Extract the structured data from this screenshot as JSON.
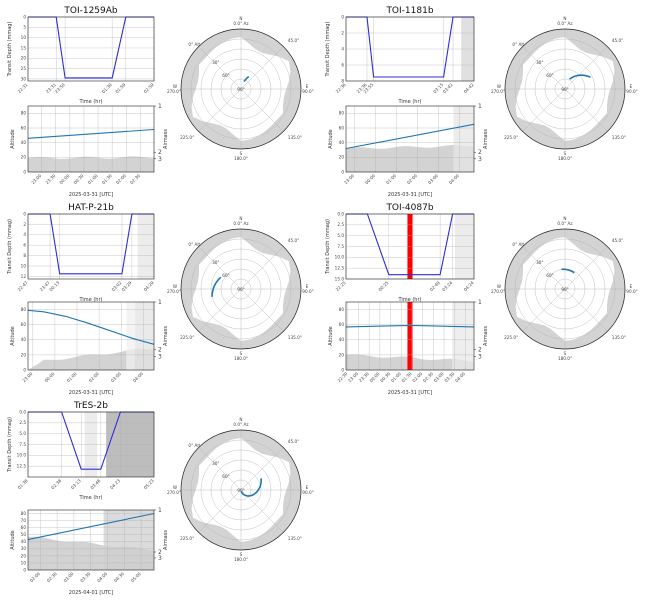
{
  "colors": {
    "transit": "#2a2fd6",
    "altitude": "#1f77b4",
    "sky": "#1f77b4",
    "horizon": "#d3d3d3",
    "shade_light": "#e9e9e9",
    "shade_dark": "#bdbdbd",
    "marker": "#ff0000",
    "grid": "#b0b0b0"
  },
  "polar_labels": {
    "n": "N",
    "n_az": "0.0° Az",
    "e": "E",
    "e_az": "90.0°",
    "s": "S",
    "s_az": "180.0°",
    "w": "W",
    "w_az": "270.0°",
    "d45": "45.0°",
    "d135": "135.0°",
    "d225": "225.0°",
    "d315": "315.0°",
    "r0": "0° Alt",
    "r30": "30°",
    "r60": "60°",
    "r90": "90°"
  },
  "chart_data": [
    {
      "type": "line",
      "title": "TOI-1259Ab",
      "transit": {
        "ylabel": "Transit Depth (mmag)",
        "xlabel": "Time (hr)",
        "y_ticks": [
          "0",
          "5",
          "10",
          "15",
          "20",
          "25",
          "30"
        ],
        "y_range": [
          0,
          31
        ],
        "x_ticks": [
          "22:31",
          "23:31",
          "23:50",
          "01:30",
          "01:59",
          "02:59"
        ],
        "x": [
          "22:31",
          "23:31",
          "23:50",
          "01:30",
          "01:59",
          "02:59"
        ],
        "depth": [
          0,
          0,
          29.5,
          29.5,
          0,
          0
        ]
      },
      "altitude": {
        "ylabel": "Altitude",
        "y2label": "Airmass",
        "xlabel": "2025-03-31 [UTC]",
        "y_ticks": [
          "0",
          "20",
          "40",
          "60",
          "80"
        ],
        "y_range": [
          0,
          90
        ],
        "airmass_ticks": [
          "1",
          "2",
          "3"
        ],
        "x_ticks": [
          "23:00",
          "23:30",
          "00:00",
          "00:30",
          "01:00",
          "01:30",
          "02:00",
          "02:30"
        ],
        "x": [
          "22:31",
          "02:59"
        ],
        "alt": [
          46,
          58
        ]
      }
    },
    {
      "type": "line",
      "title": "TOI-1181b",
      "transit": {
        "ylabel": "Transit Depth (mmag)",
        "xlabel": "Time (hr)",
        "y_ticks": [
          "0",
          "2",
          "4",
          "6",
          "8"
        ],
        "y_range": [
          0,
          8
        ],
        "x_ticks": [
          "22:36",
          "23:36",
          "23:55",
          "03:15",
          "03:42",
          "04:42"
        ],
        "x": [
          "22:36",
          "23:36",
          "23:55",
          "03:15",
          "03:42",
          "04:42"
        ],
        "depth": [
          0,
          0,
          7.5,
          7.5,
          0,
          0
        ]
      },
      "altitude": {
        "ylabel": "Altitude",
        "y2label": "Airmass",
        "xlabel": "2025-03-31 [UTC]",
        "y_ticks": [
          "0",
          "20",
          "40",
          "60",
          "80"
        ],
        "y_range": [
          0,
          90
        ],
        "airmass_ticks": [
          "1",
          "2",
          "3"
        ],
        "x_ticks": [
          "23:00",
          "00:00",
          "01:00",
          "02:00",
          "03:00",
          "04:00"
        ],
        "x": [
          "22:36",
          "04:42"
        ],
        "alt": [
          32,
          65
        ]
      }
    },
    {
      "type": "line",
      "title": "HAT-P-21b",
      "transit": {
        "ylabel": "Transit Depth (mmag)",
        "xlabel": "Time (hr)",
        "y_ticks": [
          "0",
          "2",
          "4",
          "6",
          "8",
          "10",
          "12"
        ],
        "y_range": [
          0,
          12.5
        ],
        "x_ticks": [
          "22:47",
          "23:47",
          "00:13",
          "03:02",
          "03:29",
          "04:29"
        ],
        "x": [
          "22:47",
          "23:47",
          "00:13",
          "03:02",
          "03:29",
          "04:29"
        ],
        "depth": [
          0,
          0,
          11.5,
          11.5,
          0,
          0
        ]
      },
      "altitude": {
        "ylabel": "Altitude",
        "y2label": "Airmass",
        "xlabel": "2025-03-31 [UTC]",
        "y_ticks": [
          "0",
          "20",
          "40",
          "60",
          "80"
        ],
        "y_range": [
          0,
          90
        ],
        "airmass_ticks": [
          "1",
          "2",
          "3"
        ],
        "x_ticks": [
          "23:00",
          "00:00",
          "01:00",
          "02:00",
          "03:00",
          "04:00"
        ],
        "x": [
          "22:47",
          "23:30",
          "00:30",
          "01:30",
          "02:30",
          "03:30",
          "04:29"
        ],
        "alt": [
          79,
          77,
          71,
          62,
          52,
          42,
          34
        ]
      }
    },
    {
      "type": "line",
      "title": "TOI-4087b",
      "transit": {
        "ylabel": "Transit Depth (mmag)",
        "xlabel": "Time (hr)",
        "y_ticks": [
          "0.0",
          "2.5",
          "5.0",
          "7.5",
          "10.0",
          "12.5",
          "15.0"
        ],
        "y_range": [
          0,
          15
        ],
        "x_ticks": [
          "22:25",
          "00:25",
          "02:49",
          "03:24",
          "04:24"
        ],
        "x": [
          "22:25",
          "23:25",
          "00:25",
          "02:49",
          "03:24",
          "04:24"
        ],
        "depth": [
          0,
          0,
          14,
          14,
          0,
          0
        ]
      },
      "altitude": {
        "ylabel": "Altitude",
        "y2label": "Airmass",
        "xlabel": "2025-03-31 [UTC]",
        "y_ticks": [
          "0",
          "20",
          "40",
          "60",
          "80"
        ],
        "y_range": [
          0,
          90
        ],
        "airmass_ticks": [
          "1",
          "2",
          "3"
        ],
        "x_ticks": [
          "22:30",
          "23:00",
          "23:30",
          "00:00",
          "00:30",
          "01:00",
          "01:30",
          "02:00",
          "02:30",
          "03:00",
          "03:30",
          "04:00"
        ],
        "x": [
          "22:25",
          "01:30",
          "04:24"
        ],
        "alt": [
          57,
          59,
          57
        ]
      }
    },
    {
      "type": "line",
      "title": "TrES-2b",
      "transit": {
        "ylabel": "Transit Depth (mmag)",
        "xlabel": "Time (hr)",
        "y_ticks": [
          "0.0",
          "2.5",
          "5.0",
          "7.5",
          "10.0",
          "12.5"
        ],
        "y_range": [
          0,
          15
        ],
        "x_ticks": [
          "01:38",
          "02:38",
          "03:13",
          "03:48",
          "04:23",
          "05:23"
        ],
        "x": [
          "01:38",
          "02:38",
          "03:13",
          "03:48",
          "04:23",
          "05:23"
        ],
        "depth": [
          0,
          0,
          13.2,
          13.2,
          0,
          0
        ]
      },
      "altitude": {
        "ylabel": "Altitude",
        "y2label": "Airmass",
        "xlabel": "2025-04-01 [UTC]",
        "y_ticks": [
          "0",
          "10",
          "20",
          "30",
          "40",
          "50",
          "60",
          "70",
          "80"
        ],
        "y_range": [
          0,
          85
        ],
        "airmass_ticks": [
          "1",
          "2",
          "3"
        ],
        "x_ticks": [
          "02:00",
          "02:30",
          "03:00",
          "03:30",
          "04:00",
          "04:30",
          "05:00"
        ],
        "x": [
          "01:38",
          "05:23"
        ],
        "alt": [
          43,
          80
        ]
      }
    }
  ]
}
